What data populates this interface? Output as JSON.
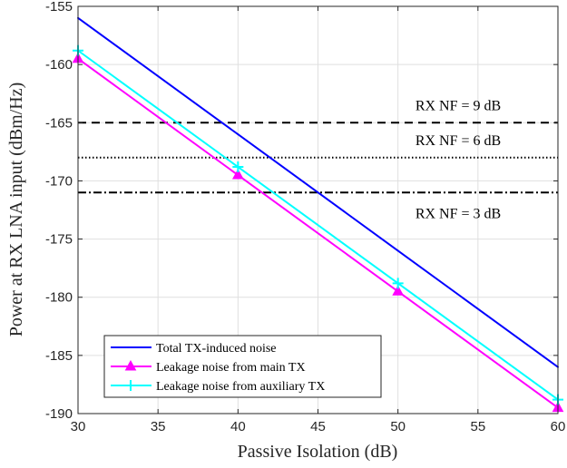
{
  "chart_data": {
    "type": "line",
    "xlabel": "Passive Isolation (dB)",
    "ylabel": "Power at RX LNA input (dBm/Hz)",
    "xlim": [
      30,
      60
    ],
    "ylim": [
      -190,
      -155
    ],
    "xticks": [
      30,
      35,
      40,
      45,
      50,
      55,
      60
    ],
    "yticks": [
      -155,
      -160,
      -165,
      -170,
      -175,
      -180,
      -185,
      -190
    ],
    "grid": true,
    "legend_position": "bottom-left",
    "series": [
      {
        "name": "Total TX-induced noise",
        "color": "#0000ff",
        "marker": "none",
        "x": [
          30,
          40,
          50,
          60
        ],
        "y": [
          -156,
          -166,
          -176,
          -186
        ]
      },
      {
        "name": "Leakage noise from main TX",
        "color": "#ff00ff",
        "marker": "triangle",
        "x": [
          30,
          40,
          50,
          60
        ],
        "y": [
          -159.5,
          -169.5,
          -179.5,
          -189.5
        ]
      },
      {
        "name": "Leakage noise from auxiliary TX",
        "color": "#00ffff",
        "marker": "plus",
        "x": [
          30,
          40,
          50,
          60
        ],
        "y": [
          -158.8,
          -168.8,
          -178.8,
          -188.8
        ]
      }
    ],
    "reference_lines": [
      {
        "label": "RX NF = 9 dB",
        "y": -165,
        "style": "dashed",
        "color": "#000000"
      },
      {
        "label": "RX NF = 6 dB",
        "y": -168,
        "style": "dotted",
        "color": "#000000"
      },
      {
        "label": "RX NF = 3 dB",
        "y": -171,
        "style": "dashdot",
        "color": "#000000"
      }
    ]
  }
}
